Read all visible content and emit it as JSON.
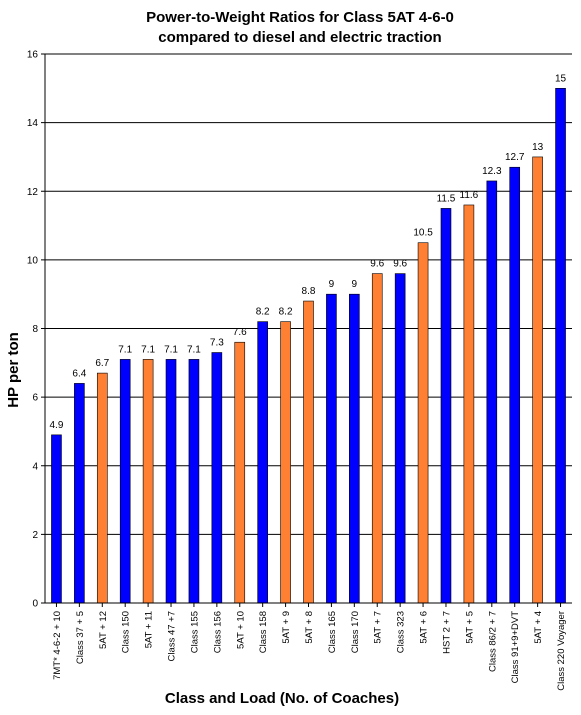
{
  "chart_data": {
    "type": "bar",
    "title": [
      "Power-to-Weight Ratios for Class 5AT 4-6-0",
      "compared to diesel and electric traction"
    ],
    "xlabel": "Class and Load (No. of Coaches)",
    "ylabel": "HP per ton",
    "ylim": [
      0,
      16
    ],
    "yticks": [
      0,
      2,
      4,
      6,
      8,
      10,
      12,
      14,
      16
    ],
    "grid": true,
    "legend": "none",
    "colors": {
      "traction": "#0000ff",
      "5AT": "#ff8033",
      "outline": "#000000"
    },
    "categories": [
      "7MT* 4-6-2 + 10",
      "Class 37 + 5",
      "5AT + 12",
      "Class 150",
      "5AT + 11",
      "Class 47 +7",
      "Class 155",
      "Class 156",
      "5AT + 10",
      "Class 158",
      "5AT + 9",
      "5AT + 8",
      "Class 165",
      "Class 170",
      "5AT + 7",
      "Class 323",
      "5AT + 6",
      "HST 2 + 7",
      "5AT + 5",
      "Class 86/2 + 7",
      "Class 91+9+DVT",
      "5AT + 4",
      "Class 220 Voyager"
    ],
    "values": [
      4.9,
      6.4,
      6.7,
      7.1,
      7.1,
      7.1,
      7.1,
      7.3,
      7.6,
      8.2,
      8.2,
      8.8,
      9,
      9,
      9.6,
      9.6,
      10.5,
      11.5,
      11.6,
      12.3,
      12.7,
      13,
      15
    ],
    "value_labels": [
      "4.9",
      "6.4",
      "6.7",
      "7.1",
      "7.1",
      "7.1",
      "7.1",
      "7.3",
      "7.6",
      "8.2",
      "8.2",
      "8.8",
      "9",
      "9",
      "9.6",
      "9.6",
      "10.5",
      "11.5",
      "11.6",
      "12.3",
      "12.7",
      "13",
      "15"
    ],
    "group": [
      "traction",
      "traction",
      "5AT",
      "traction",
      "5AT",
      "traction",
      "traction",
      "traction",
      "5AT",
      "traction",
      "5AT",
      "5AT",
      "traction",
      "traction",
      "5AT",
      "traction",
      "5AT",
      "traction",
      "5AT",
      "traction",
      "traction",
      "5AT",
      "traction"
    ]
  }
}
